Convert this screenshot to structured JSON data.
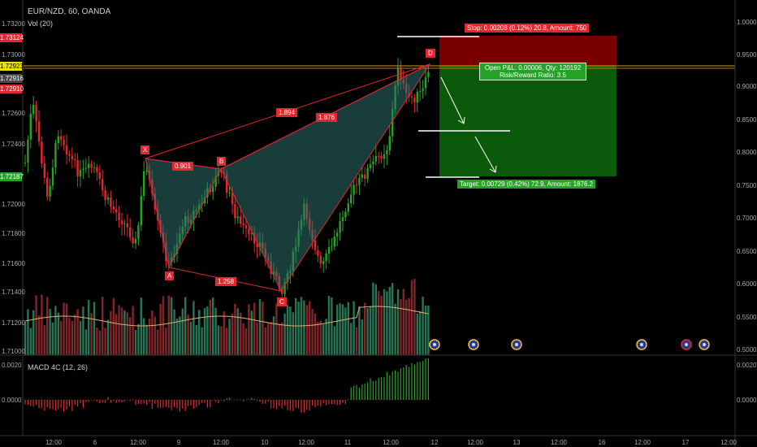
{
  "header": {
    "symbol": "EUR/NZD, 60, OANDA",
    "volume_label": "Vol (20)"
  },
  "macd_label": "MACD 4C (12, 26)",
  "left_price_axis": [
    "1.73200",
    "1.73000",
    "1.72600",
    "1.72400",
    "1.72000",
    "1.71800",
    "1.71600",
    "1.71400",
    "1.71200",
    "1.71000"
  ],
  "left_price_tags": [
    {
      "text": "1.73124",
      "color": "#e5262e",
      "fg": "#ffffff"
    },
    {
      "text": "1.72923",
      "color": "#f0e000",
      "fg": "#000000"
    },
    {
      "text": "1.72916",
      "color": "#4a4a4a",
      "fg": "#ffffff"
    },
    {
      "text": "1.72910",
      "color": "#e5262e",
      "fg": "#ffffff"
    },
    {
      "text": "1.72187",
      "color": "#26a326",
      "fg": "#ffffff"
    }
  ],
  "right_volume_axis": [
    "1.0000",
    "0.9500",
    "0.9000",
    "0.8500",
    "0.8000",
    "0.7500",
    "0.7000",
    "0.6500",
    "0.6000",
    "0.5500",
    "0.5000"
  ],
  "right_macd_axis": [
    "0.0020",
    "0.0000"
  ],
  "left_macd_axis": [
    "0.0020",
    "0.0000"
  ],
  "time_axis": [
    "12:00",
    "6",
    "12:00",
    "9",
    "12:00",
    "10",
    "12:00",
    "11",
    "12:00",
    "12",
    "12:00",
    "13",
    "12:00",
    "16",
    "12:00",
    "17",
    "12:00"
  ],
  "pattern": {
    "points": [
      "X",
      "A",
      "B",
      "C",
      "D"
    ],
    "ratios": [
      "0.901",
      "1.258",
      "1.894",
      "1.876"
    ]
  },
  "position": {
    "stop_text": "Stop: 0.00208 (0.12%) 20.8, Amount: 750",
    "open_text_1": "Open P&L: 0.00006, Qty: 120192",
    "open_text_2": "Risk/Reward Ratio: 3.5",
    "target_text": "Target: 0.00729 (0.42%) 72.9, Amount: 1876.2"
  },
  "colors": {
    "up": "#26a326",
    "down": "#e5262e",
    "pattern_fill": "#2e6f6b",
    "pattern_line": "#e5262e",
    "stop_zone": "#7a0000",
    "target_zone": "#0b5a0b"
  }
}
